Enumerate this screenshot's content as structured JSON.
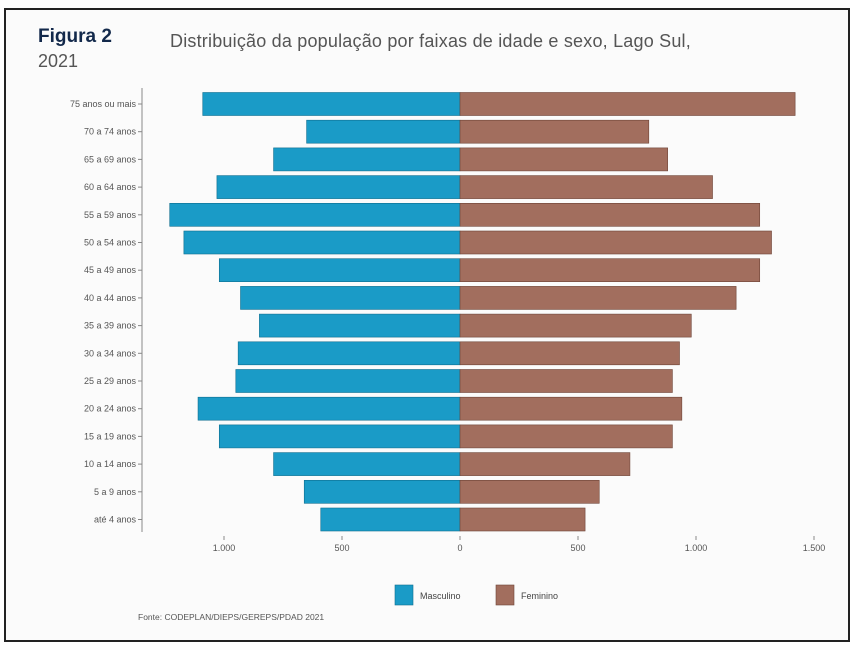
{
  "header": {
    "figure_label": "Figura 2",
    "title": "Distribuição da população por faixas de idade e sexo, Lago Sul,",
    "year": "2021"
  },
  "source": "Fonte: CODEPLAN/DIEPS/GEREPS/PDAD 2021",
  "colors": {
    "masculino": "#1a9bc7",
    "feminino": "#a26e5e"
  },
  "chart_data": {
    "type": "bar",
    "orientation": "horizontal",
    "categories": [
      "75 anos ou mais",
      "70 a 74 anos",
      "65 a 69 anos",
      "60 a 64 anos",
      "55 a 59 anos",
      "50 a 54 anos",
      "45 a 49 anos",
      "40 a 44 anos",
      "35 a 39 anos",
      "30 a 34 anos",
      "25 a 29 anos",
      "20 a 24 anos",
      "15 a 19 anos",
      "10 a 14 anos",
      "5 a 9 anos",
      "até 4 anos"
    ],
    "series": [
      {
        "name": "Masculino",
        "values": [
          1090,
          650,
          790,
          1030,
          1230,
          1170,
          1020,
          930,
          850,
          940,
          950,
          1110,
          1020,
          790,
          660,
          590
        ]
      },
      {
        "name": "Feminino",
        "values": [
          1420,
          800,
          880,
          1070,
          1270,
          1320,
          1270,
          1170,
          980,
          930,
          900,
          940,
          900,
          720,
          590,
          530
        ]
      }
    ],
    "x_ticks": [
      "1.000",
      "500",
      "0",
      "500",
      "1.000",
      "1.500"
    ],
    "x_tick_values": [
      -1000,
      -500,
      0,
      500,
      1000,
      1500
    ],
    "xlim": [
      -1340,
      1520
    ],
    "legend": {
      "placement": "bottom",
      "entries": [
        "Masculino",
        "Feminino"
      ]
    },
    "grid": false
  }
}
